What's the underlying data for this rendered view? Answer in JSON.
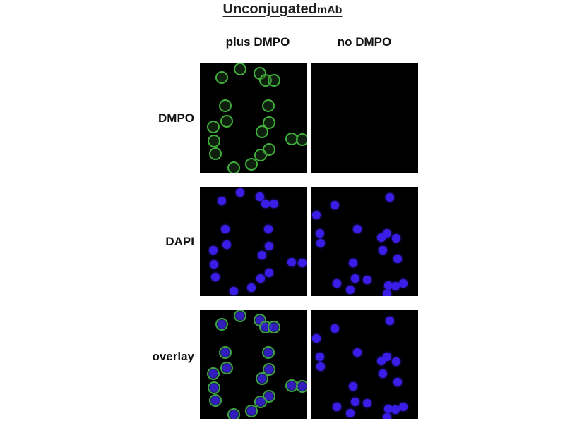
{
  "figure": {
    "title_main": "Unconjugated",
    "title_suffix": "mAb",
    "columns": [
      "plus DMPO",
      "no DMPO"
    ],
    "rows": [
      "DMPO",
      "DAPI",
      "overlay"
    ]
  },
  "colors": {
    "dmpo_stain": "#3fae3a",
    "dapi_stain": "#3a1ee8",
    "background": "#000000"
  }
}
